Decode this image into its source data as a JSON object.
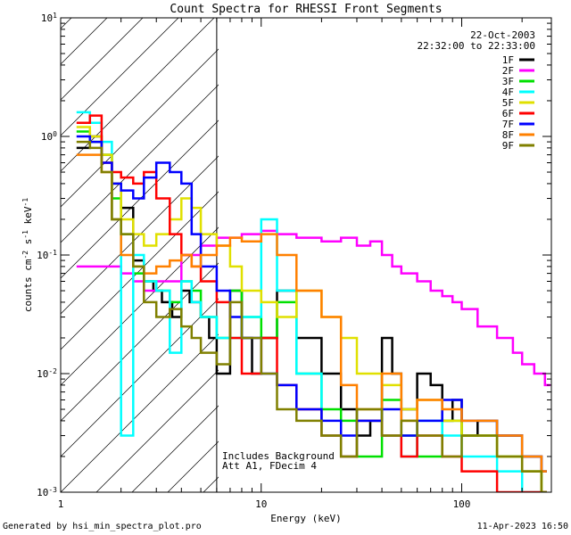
{
  "chart_data": {
    "type": "line",
    "title": "Count Spectra for RHESSI Front Segments",
    "xlabel": "Energy (keV)",
    "ylabel_base": "counts cm",
    "ylabel_sup1": "-2",
    "ylabel_mid": " s",
    "ylabel_sup2": "-1",
    "ylabel_end": " keV",
    "ylabel_sup3": "-1",
    "x_scale": "log",
    "y_scale": "log",
    "xlim": [
      1,
      280
    ],
    "ylim": [
      0.001,
      10
    ],
    "x_ticks": [
      {
        "v": 1,
        "label": "1"
      },
      {
        "v": 10,
        "label": "10"
      },
      {
        "v": 100,
        "label": "100"
      }
    ],
    "y_ticks": [
      {
        "v": 10,
        "base": "10",
        "exp": "1"
      },
      {
        "v": 1,
        "base": "10",
        "exp": "0"
      },
      {
        "v": 0.1,
        "base": "10",
        "exp": "-1"
      },
      {
        "v": 0.01,
        "base": "10",
        "exp": "-2"
      },
      {
        "v": 0.001,
        "base": "10",
        "exp": "-3"
      }
    ],
    "hatched_region_x": [
      1,
      6
    ],
    "date": "22-Oct-2003",
    "time_range": "22:32:00 to 22:33:00",
    "annotation_line1": "Includes Background",
    "annotation_line2": "Att A1, FDecim 4",
    "series": [
      {
        "name": "1F",
        "color": "#000000",
        "x": [
          1.2,
          1.4,
          1.6,
          1.8,
          2.0,
          2.3,
          2.6,
          2.9,
          3.2,
          3.6,
          4.0,
          4.4,
          5.0,
          5.5,
          6.0,
          7.0,
          8.0,
          9.0,
          10.0,
          12,
          15,
          20,
          25,
          30,
          35,
          40,
          45,
          50,
          60,
          70,
          80,
          90,
          100,
          120,
          150,
          200,
          250
        ],
        "y": [
          0.8,
          1.0,
          0.7,
          0.4,
          0.25,
          0.09,
          0.06,
          0.05,
          0.04,
          0.03,
          0.05,
          0.04,
          0.03,
          0.02,
          0.01,
          0.05,
          0.02,
          0.01,
          0.02,
          0.05,
          0.02,
          0.01,
          0.005,
          0.003,
          0.004,
          0.02,
          0.01,
          0.005,
          0.01,
          0.008,
          0.004,
          0.006,
          0.003,
          0.004,
          0.003,
          0.002,
          0.0015
        ]
      },
      {
        "name": "2F",
        "color": "#ff00ff",
        "x": [
          1.2,
          1.6,
          2.0,
          2.3,
          2.6,
          3.0,
          4.0,
          5.0,
          6.0,
          8.0,
          10,
          12,
          15,
          20,
          25,
          30,
          35,
          40,
          45,
          50,
          60,
          70,
          80,
          90,
          100,
          120,
          150,
          180,
          200,
          230,
          260
        ],
        "y": [
          0.08,
          0.08,
          0.07,
          0.06,
          0.05,
          0.06,
          0.1,
          0.12,
          0.14,
          0.15,
          0.16,
          0.15,
          0.14,
          0.13,
          0.14,
          0.12,
          0.13,
          0.1,
          0.08,
          0.07,
          0.06,
          0.05,
          0.045,
          0.04,
          0.035,
          0.025,
          0.02,
          0.015,
          0.012,
          0.01,
          0.008
        ]
      },
      {
        "name": "3F",
        "color": "#00e000",
        "x": [
          1.2,
          1.4,
          1.6,
          1.8,
          2.0,
          2.3,
          2.6,
          3.0,
          3.5,
          4.0,
          4.5,
          5.0,
          6.0,
          7.0,
          8.0,
          10,
          12,
          15,
          20,
          25,
          30,
          40,
          50,
          60,
          80,
          100,
          150,
          200,
          250
        ],
        "y": [
          1.1,
          0.9,
          0.7,
          0.3,
          0.15,
          0.07,
          0.06,
          0.05,
          0.04,
          0.06,
          0.05,
          0.03,
          0.02,
          0.05,
          0.03,
          0.02,
          0.04,
          0.01,
          0.005,
          0.004,
          0.002,
          0.006,
          0.003,
          0.002,
          0.004,
          0.003,
          0.002,
          0.0015,
          0.001
        ]
      },
      {
        "name": "4F",
        "color": "#00ffff",
        "x": [
          1.2,
          1.4,
          1.6,
          1.8,
          2.0,
          2.3,
          2.6,
          3.0,
          3.5,
          4.0,
          4.5,
          5.0,
          6.0,
          8.0,
          10,
          12,
          15,
          20,
          25,
          30,
          40,
          50,
          60,
          80,
          100,
          150,
          200,
          250
        ],
        "y": [
          1.6,
          1.3,
          0.9,
          0.2,
          0.003,
          0.1,
          0.06,
          0.05,
          0.015,
          0.06,
          0.04,
          0.03,
          0.02,
          0.03,
          0.2,
          0.05,
          0.01,
          0.003,
          0.002,
          0.004,
          0.003,
          0.002,
          0.004,
          0.003,
          0.002,
          0.0015,
          0.001,
          0.001
        ]
      },
      {
        "name": "5F",
        "color": "#e0e000",
        "x": [
          1.2,
          1.4,
          1.6,
          1.8,
          2.0,
          2.3,
          2.6,
          3.0,
          3.5,
          4.0,
          4.5,
          5.0,
          6.0,
          7.0,
          8.0,
          10,
          12,
          15,
          20,
          25,
          30,
          40,
          50,
          60,
          80,
          100,
          150,
          200,
          250
        ],
        "y": [
          1.2,
          1.0,
          0.7,
          0.4,
          0.2,
          0.15,
          0.12,
          0.15,
          0.2,
          0.3,
          0.25,
          0.15,
          0.12,
          0.08,
          0.05,
          0.04,
          0.03,
          0.05,
          0.03,
          0.02,
          0.01,
          0.008,
          0.005,
          0.006,
          0.004,
          0.003,
          0.002,
          0.0015,
          0.001
        ]
      },
      {
        "name": "6F",
        "color": "#ff0000",
        "x": [
          1.2,
          1.4,
          1.6,
          1.8,
          2.0,
          2.3,
          2.6,
          3.0,
          3.5,
          4.0,
          4.5,
          5.0,
          6.0,
          7.0,
          8.0,
          10,
          12,
          15,
          20,
          25,
          30,
          40,
          50,
          60,
          80,
          100,
          150,
          200,
          250
        ],
        "y": [
          1.3,
          1.5,
          0.6,
          0.5,
          0.45,
          0.4,
          0.5,
          0.3,
          0.15,
          0.1,
          0.08,
          0.06,
          0.04,
          0.02,
          0.01,
          0.02,
          0.008,
          0.005,
          0.003,
          0.002,
          0.004,
          0.003,
          0.002,
          0.003,
          0.002,
          0.0015,
          0.001,
          0.001,
          0.001
        ]
      },
      {
        "name": "7F",
        "color": "#0000ff",
        "x": [
          1.2,
          1.4,
          1.6,
          1.8,
          2.0,
          2.3,
          2.6,
          3.0,
          3.5,
          4.0,
          4.5,
          5.0,
          6.0,
          7.0,
          8.0,
          10,
          12,
          15,
          20,
          25,
          30,
          40,
          50,
          60,
          80,
          100,
          150,
          200,
          250
        ],
        "y": [
          1.0,
          0.9,
          0.6,
          0.4,
          0.35,
          0.3,
          0.45,
          0.6,
          0.5,
          0.4,
          0.15,
          0.08,
          0.05,
          0.03,
          0.02,
          0.01,
          0.008,
          0.005,
          0.004,
          0.003,
          0.004,
          0.005,
          0.003,
          0.004,
          0.006,
          0.004,
          0.003,
          0.002,
          0.0015
        ]
      },
      {
        "name": "8F",
        "color": "#ff8000",
        "x": [
          1.2,
          1.4,
          1.6,
          1.8,
          2.0,
          2.3,
          2.6,
          3.0,
          3.5,
          4.0,
          4.5,
          5.0,
          6.0,
          7.0,
          8.0,
          10,
          12,
          15,
          20,
          25,
          30,
          40,
          50,
          60,
          80,
          100,
          150,
          200,
          250
        ],
        "y": [
          0.7,
          0.7,
          0.5,
          0.2,
          0.1,
          0.08,
          0.07,
          0.08,
          0.09,
          0.1,
          0.08,
          0.1,
          0.12,
          0.14,
          0.13,
          0.15,
          0.1,
          0.05,
          0.03,
          0.008,
          0.005,
          0.01,
          0.004,
          0.006,
          0.005,
          0.004,
          0.003,
          0.002,
          0.0015
        ]
      },
      {
        "name": "9F",
        "color": "#808000",
        "x": [
          1.2,
          1.4,
          1.6,
          1.8,
          2.0,
          2.3,
          2.6,
          3.0,
          3.5,
          4.0,
          4.5,
          5.0,
          6.0,
          7.0,
          8.0,
          10,
          12,
          15,
          20,
          25,
          30,
          40,
          50,
          60,
          80,
          100,
          150,
          200,
          250
        ],
        "y": [
          0.9,
          0.8,
          0.5,
          0.2,
          0.15,
          0.08,
          0.04,
          0.03,
          0.035,
          0.025,
          0.02,
          0.015,
          0.012,
          0.04,
          0.02,
          0.01,
          0.005,
          0.004,
          0.003,
          0.002,
          0.005,
          0.003,
          0.004,
          0.003,
          0.002,
          0.003,
          0.002,
          0.0015,
          0.001
        ]
      }
    ]
  },
  "footer": {
    "left": "Generated by hsi_min_spectra_plot.pro",
    "right": "11-Apr-2023 16:50"
  }
}
